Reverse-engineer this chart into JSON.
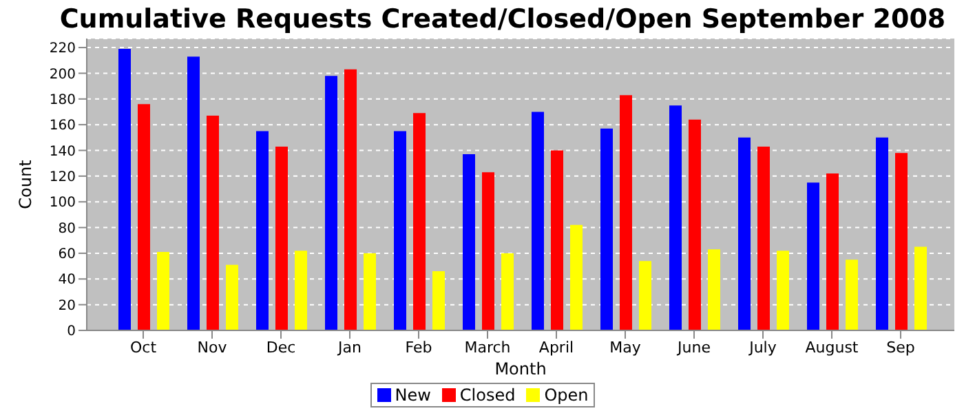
{
  "chart_data": {
    "type": "bar",
    "title": "Cumulative Requests Created/Closed/Open September 2008",
    "xlabel": "Month",
    "ylabel": "Count",
    "categories": [
      "Oct",
      "Nov",
      "Dec",
      "Jan",
      "Feb",
      "March",
      "April",
      "May",
      "June",
      "July",
      "August",
      "Sep"
    ],
    "series": [
      {
        "name": "New",
        "color": "#0000ff",
        "values": [
          219,
          213,
          155,
          198,
          155,
          137,
          170,
          157,
          175,
          150,
          115,
          150
        ]
      },
      {
        "name": "Closed",
        "color": "#ff0000",
        "values": [
          176,
          167,
          143,
          203,
          169,
          123,
          140,
          183,
          164,
          143,
          122,
          138
        ]
      },
      {
        "name": "Open",
        "color": "#ffff00",
        "values": [
          61,
          51,
          62,
          60,
          46,
          60,
          82,
          54,
          63,
          62,
          55,
          65
        ]
      }
    ],
    "ylim": [
      0,
      227
    ],
    "yticks": [
      0,
      20,
      40,
      60,
      80,
      100,
      120,
      140,
      160,
      180,
      200,
      220
    ],
    "grid": "y",
    "legend": "bottom"
  }
}
